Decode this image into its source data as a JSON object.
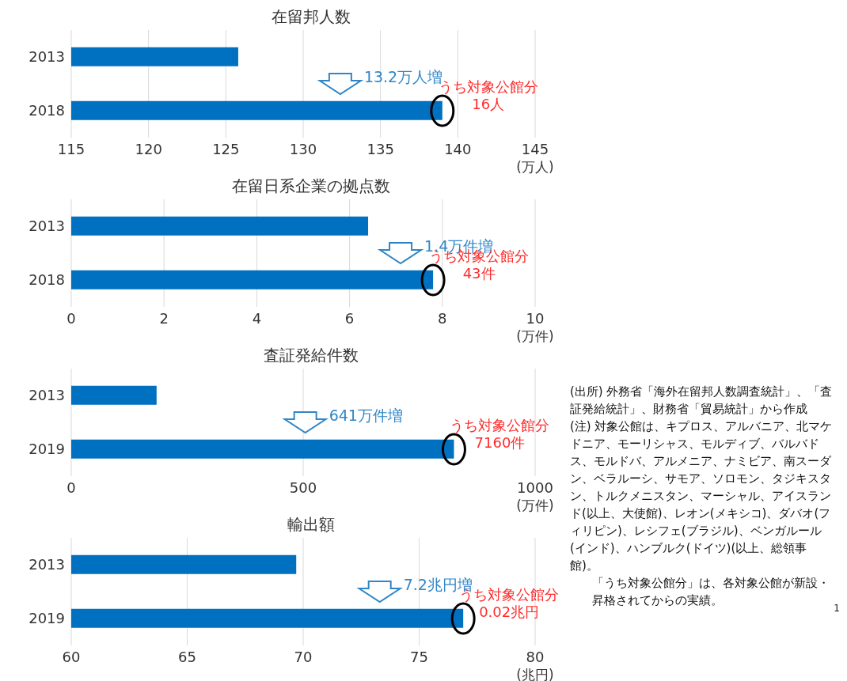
{
  "chart_data": [
    {
      "type": "bar",
      "orientation": "horizontal",
      "title": "在留邦人数",
      "categories": [
        "2013",
        "2018"
      ],
      "values": [
        125.8,
        139.0
      ],
      "color": "#0070c0",
      "xlim": [
        115,
        145
      ],
      "xticks": [
        115,
        120,
        125,
        130,
        135,
        140,
        145
      ],
      "xlabel": "(万人)",
      "grid": "x",
      "annotations": [
        "13.2万人増",
        {
          "text": "うち対象公館分\n16人",
          "x": 139.0,
          "y": "2018"
        }
      ]
    },
    {
      "type": "bar",
      "orientation": "horizontal",
      "title": "在留日系企業の拠点数",
      "categories": [
        "2013",
        "2018"
      ],
      "values": [
        6.4,
        7.8
      ],
      "color": "#0070c0",
      "xlim": [
        0,
        10
      ],
      "xticks": [
        0,
        2,
        4,
        6,
        8,
        10
      ],
      "xlabel": "(万件)",
      "grid": "x",
      "annotations": [
        "1.4万件増",
        {
          "text": "うち対象公館分\n43件",
          "x": 7.8,
          "y": "2018"
        }
      ]
    },
    {
      "type": "bar",
      "orientation": "horizontal",
      "title": "査証発給件数",
      "categories": [
        "2013",
        "2019"
      ],
      "values": [
        184,
        825
      ],
      "color": "#0070c0",
      "xlim": [
        0,
        1000
      ],
      "xticks": [
        0,
        500,
        1000
      ],
      "xlabel": "(万件)",
      "grid": "x",
      "annotations": [
        "641万件増",
        {
          "text": "うち対象公館分\n7160件",
          "x": 825,
          "y": "2019"
        }
      ]
    },
    {
      "type": "bar",
      "orientation": "horizontal",
      "title": "輸出額",
      "categories": [
        "2013",
        "2019"
      ],
      "values": [
        69.7,
        76.9
      ],
      "color": "#0070c0",
      "xlim": [
        60,
        80
      ],
      "xticks": [
        60,
        65,
        70,
        75,
        80
      ],
      "xlabel": "(兆円)",
      "grid": "x",
      "annotations": [
        "7.2兆円増",
        {
          "text": "うち対象公館分\n0.02兆円",
          "x": 76.9,
          "y": "2019"
        }
      ]
    },
    {
      "type": "other",
      "annotations": [
        "(出所) 外務省「海外在留邦人数調査統計」、「査証発給統計」、財務省「貿易統計」から作成",
        "(注) 対象公館は、キプロス、アルバニア、北マケドニア、モーリシャス、モルディブ、バルバドス、モルドバ、アルメニア、ナミビア、南スーダン、ベラルーシ、サモア、ソロモン、タジキスタン、トルクメニスタン、マーシャル、アイスランド(以上、大使館)、レオン(メキシコ)、ダバオ(フィリピン)、レシフェ(ブラジル)、ベンガルール(インド)、ハンブルク(ドイツ)(以上、総領事館)。",
        "「うち対象公館分」は、各対象公館が新設・昇格されてからの実績。",
        "1"
      ]
    }
  ]
}
